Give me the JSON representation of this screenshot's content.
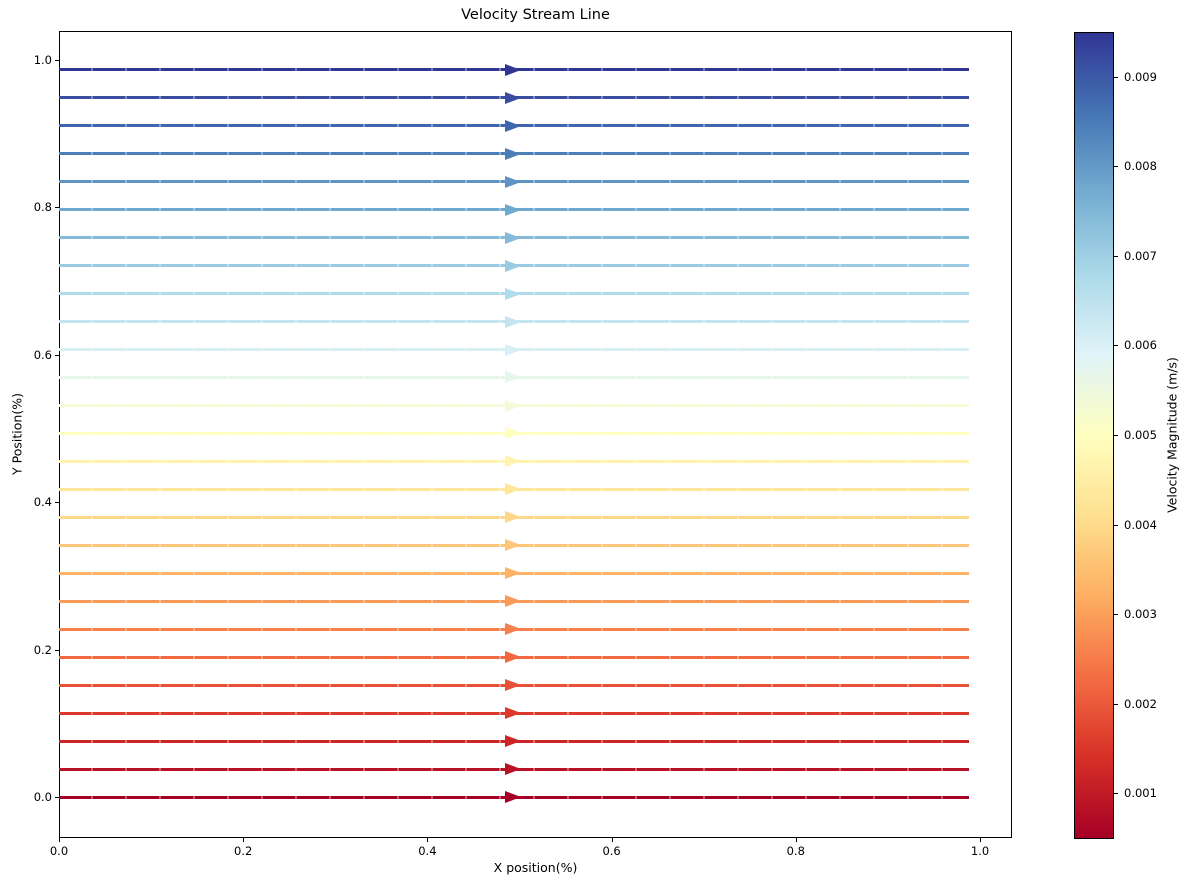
{
  "title": "Velocity Stream Line",
  "chart_data": {
    "type": "line",
    "variant": "streamplot",
    "title": "Velocity Stream Line",
    "xlabel": "X position(%)",
    "ylabel": "Y Position(%)",
    "xlim": [
      0.0,
      1.035
    ],
    "ylim": [
      -0.056,
      1.04
    ],
    "grid": false,
    "flow_direction": "right",
    "x_ticks": {
      "values": [
        0.0,
        0.2,
        0.4,
        0.6,
        0.8,
        1.0
      ],
      "labels": [
        "0.0",
        "0.2",
        "0.4",
        "0.6",
        "0.8",
        "1.0"
      ]
    },
    "y_ticks": {
      "values": [
        0.0,
        0.2,
        0.4,
        0.6,
        0.8,
        1.0
      ],
      "labels": [
        "0.0",
        "0.2",
        "0.4",
        "0.6",
        "0.8",
        "1.0"
      ]
    },
    "streamlines": {
      "x_start": 0.0,
      "x_end": 0.988,
      "arrow_x": 0.493,
      "y_positions": [
        0.0,
        0.0379,
        0.0759,
        0.1138,
        0.1518,
        0.1897,
        0.2277,
        0.2656,
        0.3036,
        0.3415,
        0.3795,
        0.4174,
        0.4553,
        0.4933,
        0.5312,
        0.5692,
        0.6071,
        0.6451,
        0.683,
        0.721,
        0.7589,
        0.7969,
        0.8348,
        0.8727,
        0.9107,
        0.9486,
        0.9866
      ],
      "velocities": [
        0.00049,
        0.000837,
        0.001183,
        0.00153,
        0.001876,
        0.002223,
        0.002569,
        0.002916,
        0.003262,
        0.003609,
        0.003955,
        0.004302,
        0.004648,
        0.004995,
        0.005341,
        0.005688,
        0.006034,
        0.006381,
        0.006727,
        0.007074,
        0.00742,
        0.007767,
        0.008113,
        0.00846,
        0.008806,
        0.009153,
        0.0095
      ]
    },
    "colorbar": {
      "label": "Velocity Magnitude (m/s)",
      "vmin": 0.00049,
      "vmax": 0.0095,
      "tick_values": [
        0.001,
        0.002,
        0.003,
        0.004,
        0.005,
        0.006,
        0.007,
        0.008,
        0.009
      ],
      "tick_labels": [
        "0.001",
        "0.002",
        "0.003",
        "0.004",
        "0.005",
        "0.006",
        "0.007",
        "0.008",
        "0.009"
      ],
      "colormap": "RdYlBu",
      "colormap_stops": [
        "#a50026",
        "#d73027",
        "#f46d43",
        "#fdae61",
        "#fee090",
        "#ffffbf",
        "#e0f3f8",
        "#abd9e9",
        "#74add1",
        "#4575b4",
        "#313695"
      ]
    }
  }
}
